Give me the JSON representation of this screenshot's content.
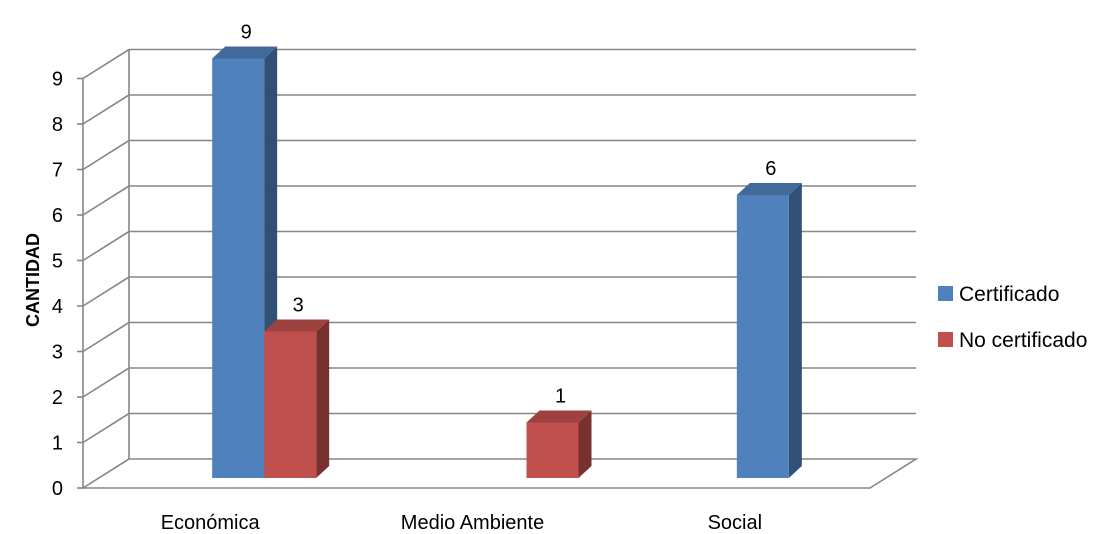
{
  "chart_data": {
    "type": "bar",
    "style": "3d-clustered-column",
    "title": "",
    "xlabel": "",
    "ylabel": "CANTIDAD",
    "ylim": [
      0,
      9
    ],
    "yticks": [
      0,
      1,
      2,
      3,
      4,
      5,
      6,
      7,
      8,
      9
    ],
    "grid": true,
    "legend_position": "right",
    "categories": [
      "Económica",
      "Medio Ambiente",
      "Social"
    ],
    "series": [
      {
        "name": "Certificado",
        "color": "#4F81BD",
        "values": [
          9,
          null,
          6
        ]
      },
      {
        "name": "No certificado",
        "color": "#C0504D",
        "values": [
          3,
          1,
          null
        ]
      }
    ]
  }
}
